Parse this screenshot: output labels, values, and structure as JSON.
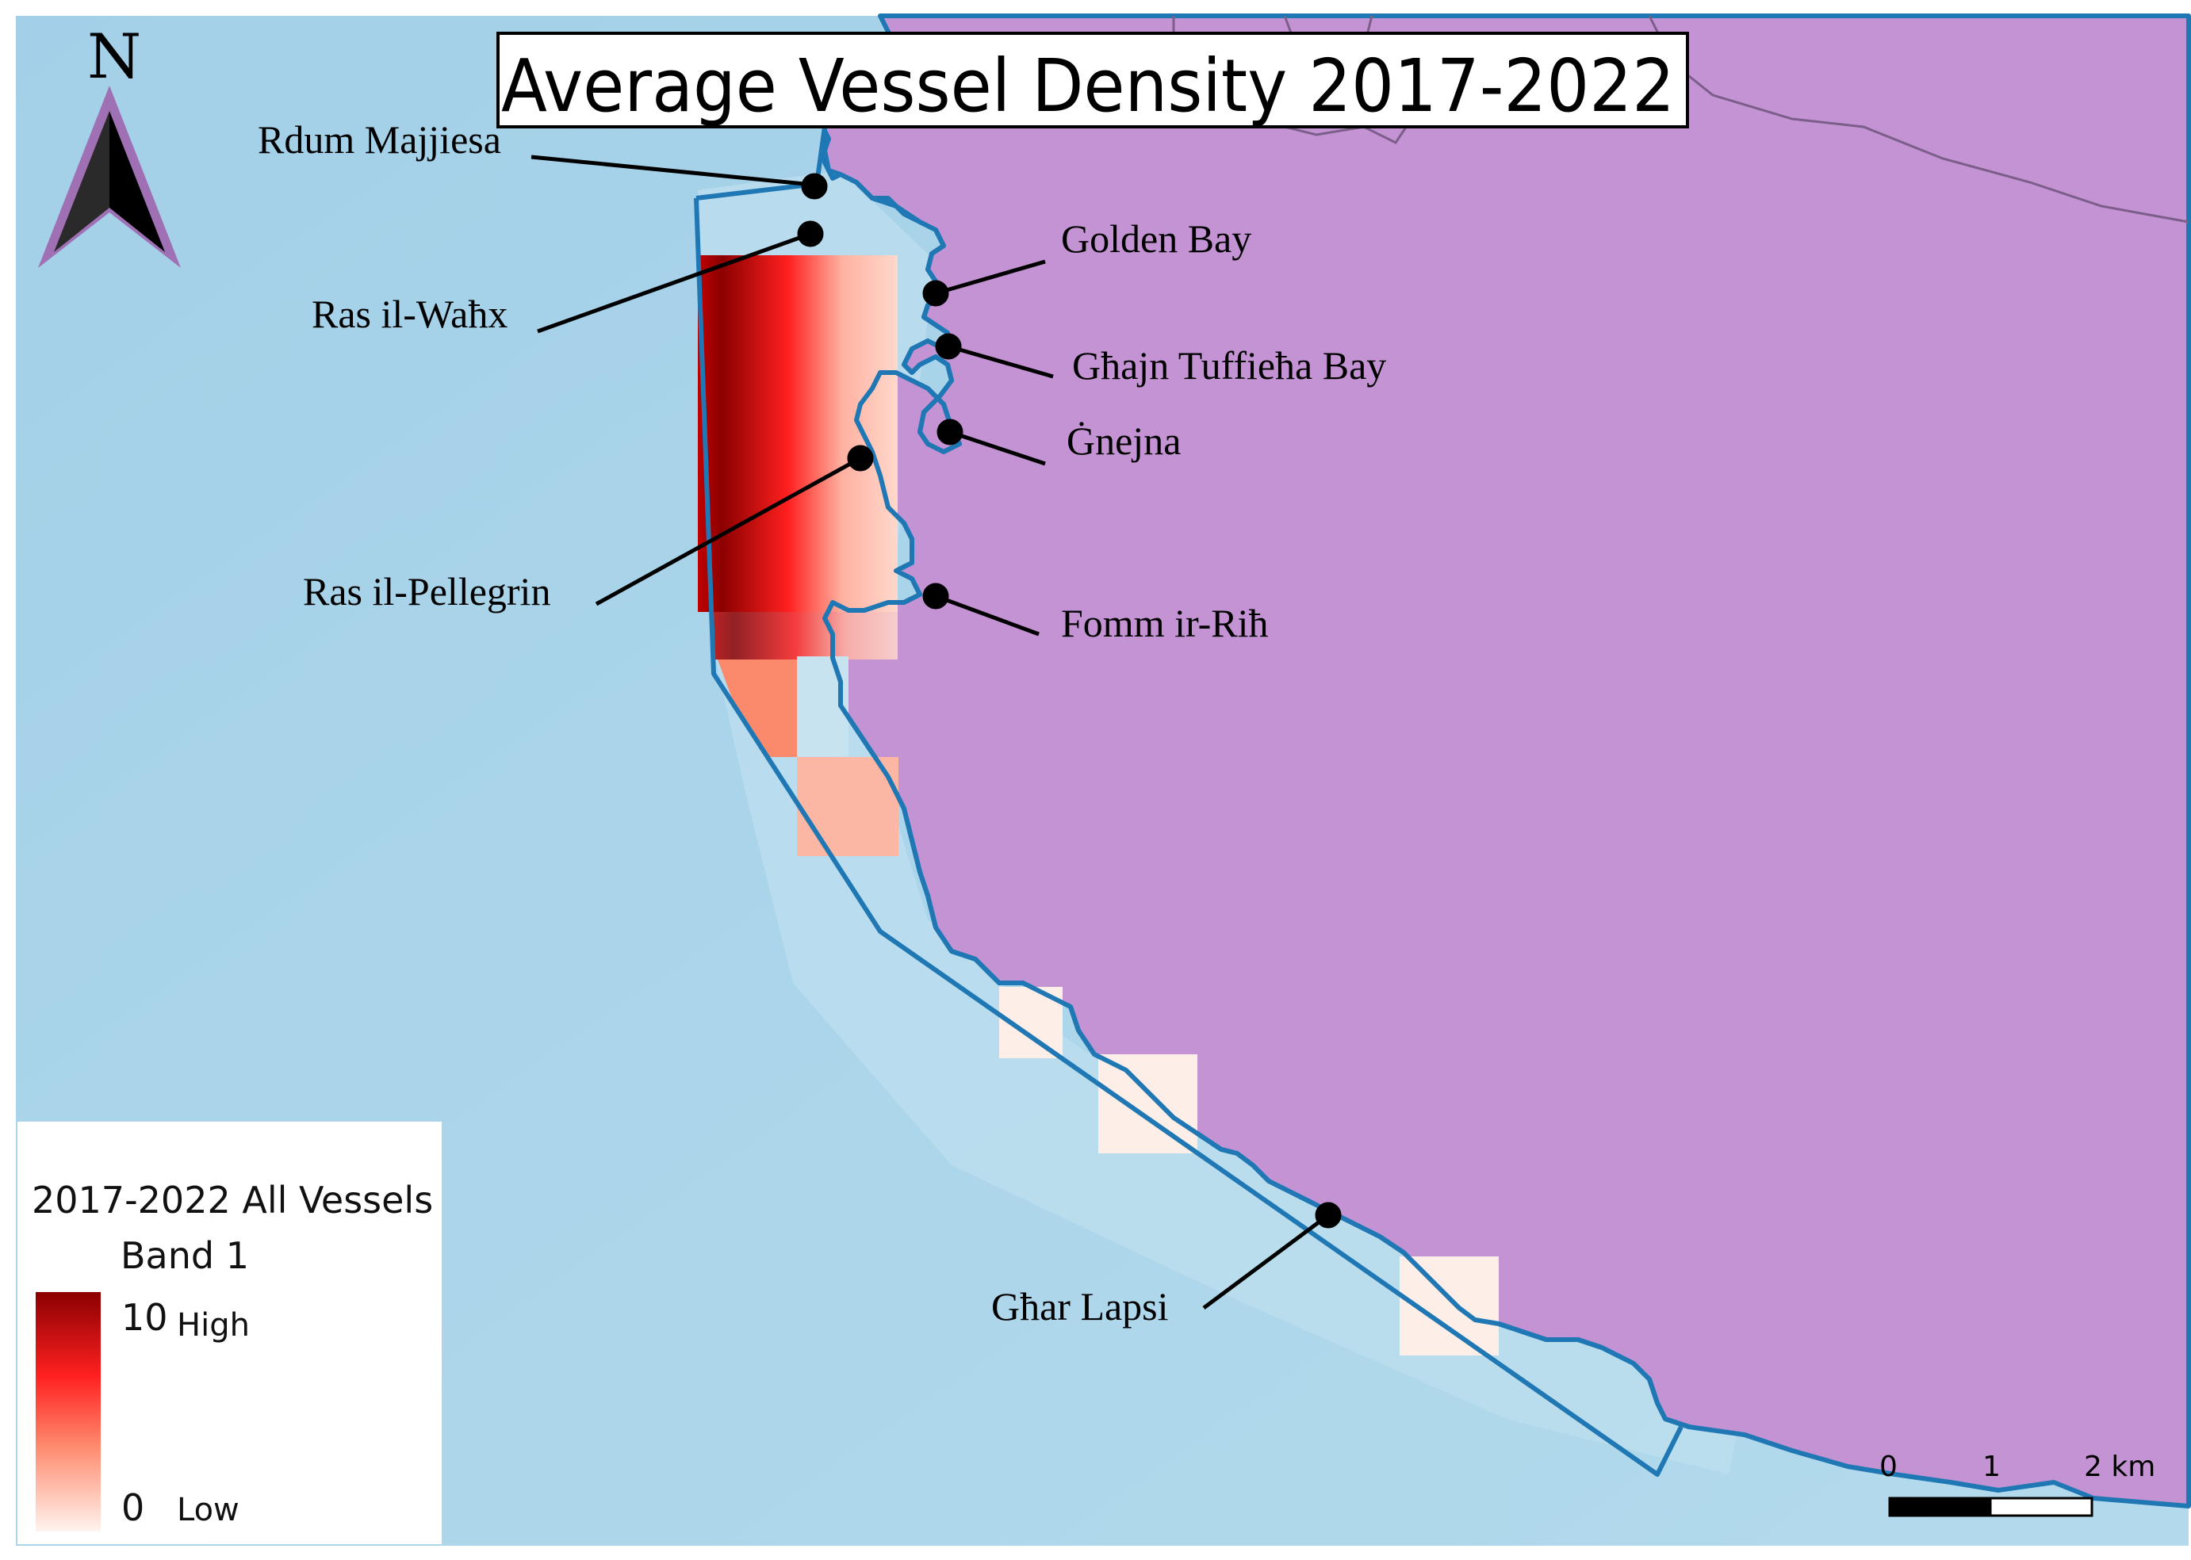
{
  "map": {
    "title": "Average Vessel Density 2017-2022",
    "north_label": "N",
    "colors": {
      "sea": "#a9d4e9",
      "land": "#c493d3",
      "boundary": "#1f78b4",
      "density_high": "#8b0000",
      "density_mid": "#ff2a2a",
      "density_low": "#fff3ee"
    },
    "places": [
      {
        "name": "Rdum Majjiesa"
      },
      {
        "name": "Ras il-Waħx"
      },
      {
        "name": "Golden Bay"
      },
      {
        "name": "Għajn Tuffieħa Bay"
      },
      {
        "name": "Ġnejna"
      },
      {
        "name": "Ras il-Pellegrin"
      },
      {
        "name": "Fomm ir-Riħ"
      },
      {
        "name": "Għar Lapsi"
      }
    ]
  },
  "legend": {
    "title_line1": "2017-2022 All Vessels",
    "title_line2": "Band 1",
    "max_value": "10",
    "max_label": "High",
    "min_value": "0",
    "min_label": "Low"
  },
  "scalebar": {
    "tick0": "0",
    "tick1": "1",
    "tick2": "2 km"
  }
}
